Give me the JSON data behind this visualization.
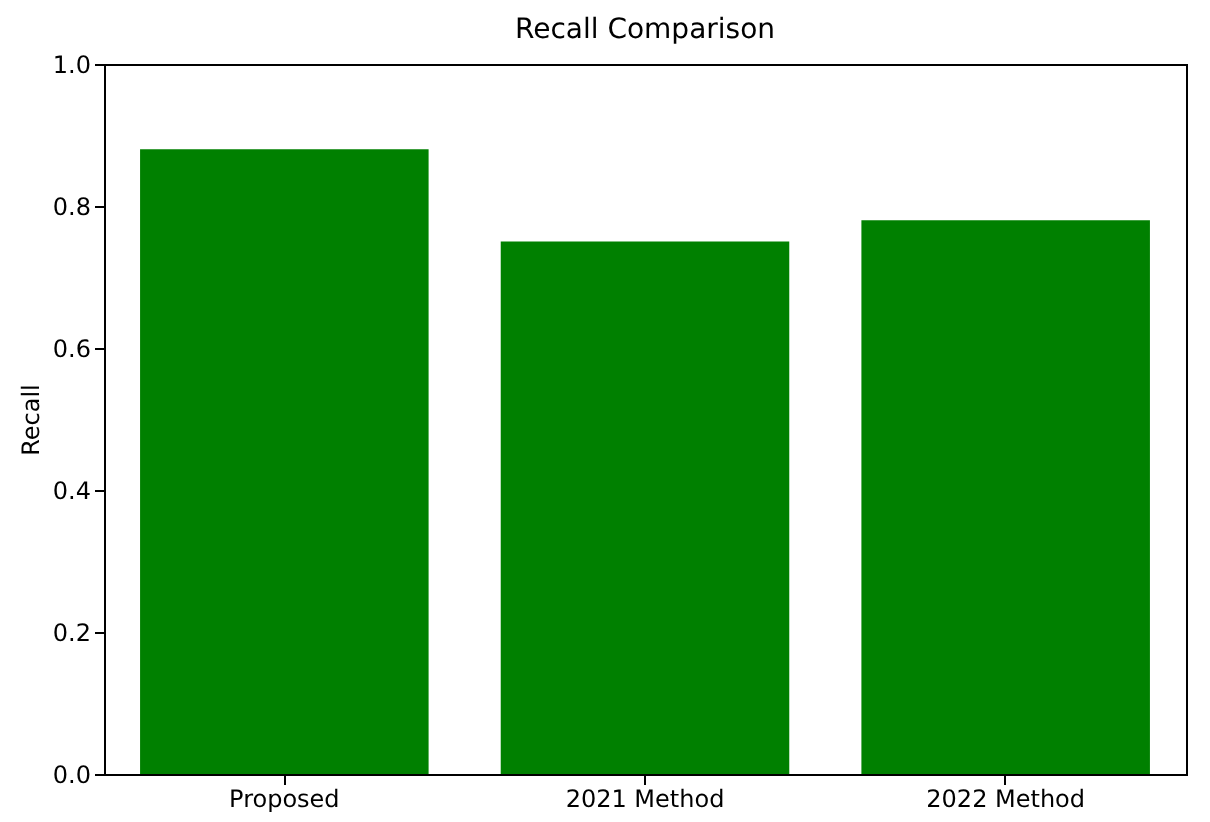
{
  "chart_data": {
    "type": "bar",
    "title": "Recall Comparison",
    "ylabel": "Recall",
    "categories": [
      "Proposed",
      "2021 Method",
      "2022 Method"
    ],
    "values": [
      0.88,
      0.75,
      0.78
    ],
    "color": "#008000",
    "ylim": [
      0,
      1
    ],
    "yticks": [
      {
        "value": 0,
        "label": "0.0"
      },
      0.2,
      0.4,
      0.6,
      0.8,
      {
        "value": 1,
        "label": "1.0"
      }
    ],
    "grid": false
  }
}
